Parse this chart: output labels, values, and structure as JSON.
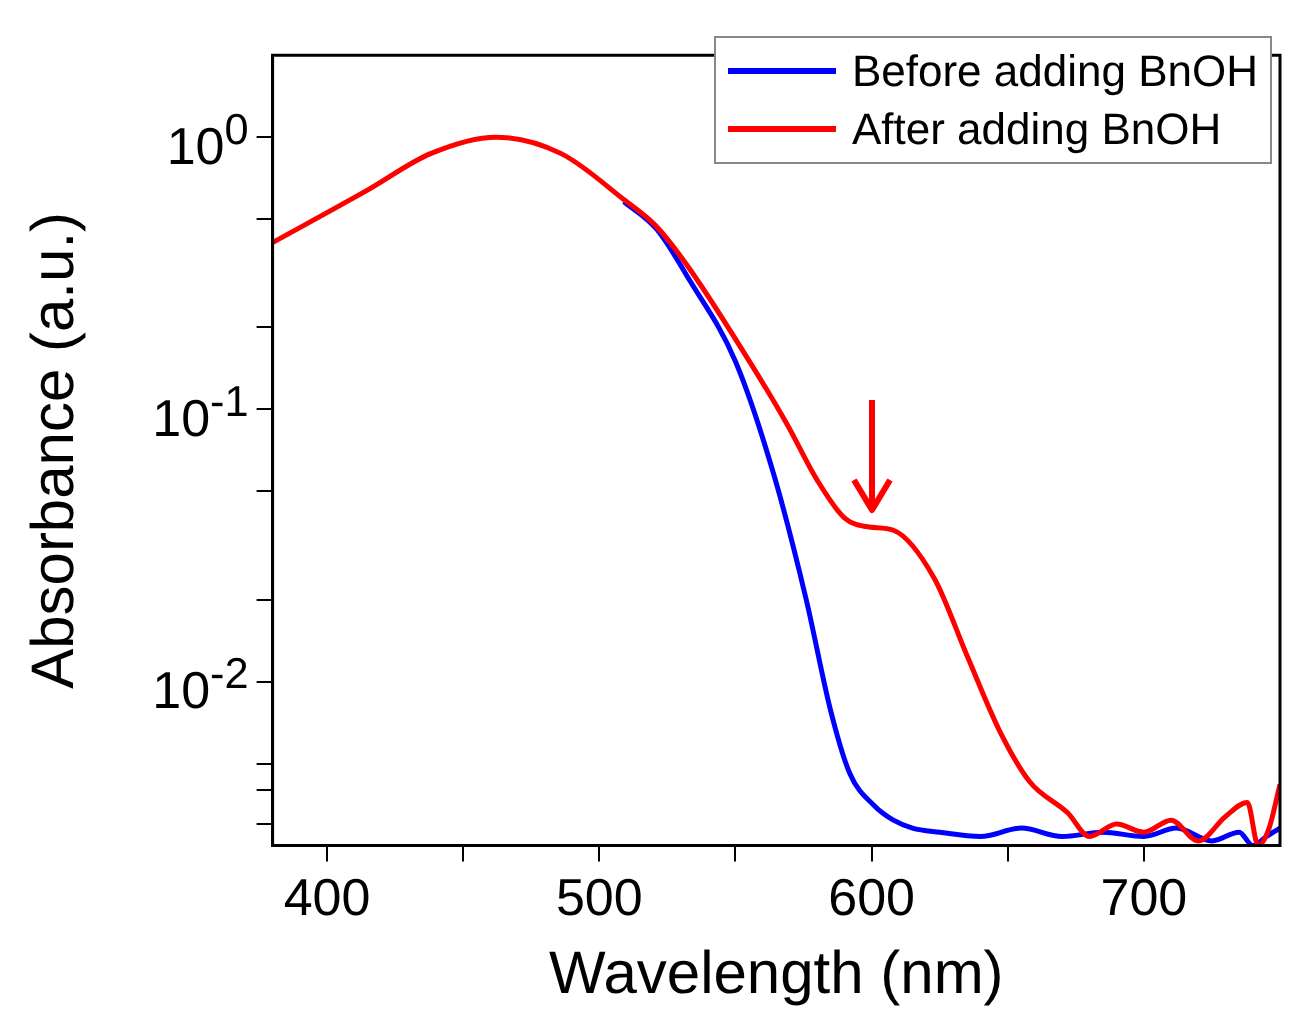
{
  "chart_data": {
    "type": "line",
    "xlabel": "Wavelength (nm)",
    "ylabel": "Absorbance (a.u.)",
    "log": "y",
    "grid": false,
    "legend": "top right",
    "marker": "none",
    "line_style": "solid",
    "xlim": [
      380,
      750
    ],
    "xticks": [
      400,
      {
        "value": 450,
        "label": null
      },
      500,
      {
        "value": 550,
        "label": null
      },
      600,
      {
        "value": 650,
        "label": null
      },
      700
    ],
    "ylim": [
      0.0025,
      2
    ],
    "yticks": [
      {
        "value": 0.003,
        "label": null
      },
      {
        "value": 0.004,
        "label": null
      },
      {
        "value": 0.005,
        "label": null
      },
      {
        "value": 0.01,
        "label": "10$^{-2}$"
      },
      {
        "value": 0.02,
        "label": null
      },
      {
        "value": 0.05,
        "label": null
      },
      {
        "value": 0.1,
        "label": "10$^{-1}$"
      },
      {
        "value": 0.2,
        "label": null
      },
      {
        "value": 0.5,
        "label": null
      },
      {
        "value": 1,
        "label": "10$^{0}$"
      }
    ],
    "series": [
      {
        "name": "Before adding BnOH",
        "color": "#0000ff",
        "x": [
          509,
          521,
          533,
          550,
          564,
          576,
          585,
          592,
          601,
          608,
          615,
          625,
          640,
          655,
          670,
          685,
          700,
          712,
          725,
          735,
          740,
          745,
          750
        ],
        "values": [
          0.58,
          0.46,
          0.3,
          0.15,
          0.058,
          0.02,
          0.0078,
          0.0046,
          0.0035,
          0.0031,
          0.0029,
          0.0028,
          0.0027,
          0.0029,
          0.0027,
          0.0028,
          0.0027,
          0.0029,
          0.0026,
          0.0028,
          0.0025,
          0.0027,
          0.0029
        ]
      },
      {
        "name": "After adding BnOH",
        "color": "#ff0000",
        "x": [
          380,
          415,
          438,
          462,
          486,
          509,
          521,
          533,
          557,
          569,
          580,
          590,
          599,
          608,
          623,
          635,
          647,
          658,
          672,
          680,
          690,
          700,
          710,
          720,
          730,
          738,
          742,
          746,
          750
        ],
        "values": [
          0.41,
          0.64,
          0.87,
          1.0,
          0.87,
          0.59,
          0.47,
          0.33,
          0.14,
          0.088,
          0.055,
          0.04,
          0.037,
          0.036,
          0.024,
          0.0125,
          0.0066,
          0.0043,
          0.0033,
          0.0027,
          0.003,
          0.0028,
          0.0031,
          0.0026,
          0.0032,
          0.0036,
          0.0025,
          0.0029,
          0.0042
        ]
      }
    ]
  }
}
